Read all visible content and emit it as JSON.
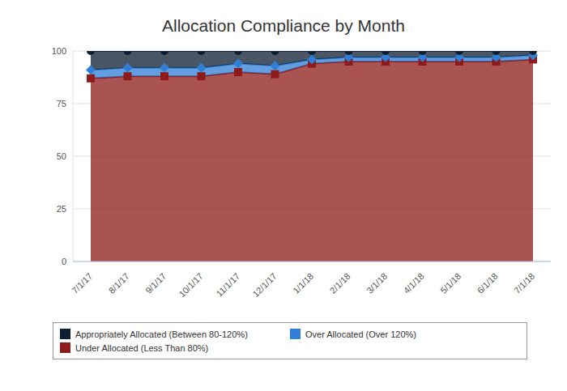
{
  "chart_data": {
    "type": "area",
    "title": "Allocation Compliance by Month",
    "categories": [
      "7/1/17",
      "8/1/17",
      "9/1/17",
      "10/1/17",
      "11/1/17",
      "12/1/17",
      "1/1/18",
      "2/1/18",
      "3/1/18",
      "4/1/18",
      "5/1/18",
      "6/1/18",
      "7/1/18"
    ],
    "series": [
      {
        "name": "Appropriately Allocated (Between 80-120%)",
        "color": "#0d1e33",
        "marker": "circle",
        "values": [
          9,
          8,
          8,
          8,
          6,
          7,
          4,
          3,
          3,
          3,
          3,
          3,
          2
        ]
      },
      {
        "name": "Over Allocated (Over 120%)",
        "color": "#2f7fd6",
        "marker": "diamond",
        "values": [
          4,
          4,
          4,
          4,
          4,
          4,
          2,
          2,
          2,
          2,
          2,
          2,
          2
        ]
      },
      {
        "name": "Under Allocated (Less Than 80%)",
        "color": "#8e1a1a",
        "marker": "square",
        "values": [
          87,
          88,
          88,
          88,
          90,
          89,
          94,
          95,
          95,
          95,
          95,
          95,
          96
        ]
      }
    ],
    "ylim": [
      0,
      100
    ],
    "yticks": [
      0,
      25,
      50,
      75,
      100
    ],
    "grid": true,
    "stacked": true,
    "legend": "bottom"
  }
}
